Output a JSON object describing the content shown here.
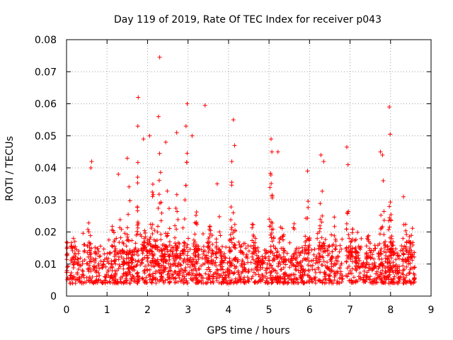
{
  "chart_data": {
    "type": "scatter",
    "title": "Day 119 of 2019, Rate Of TEC Index for receiver p043",
    "xlabel": "GPS time / hours",
    "ylabel": "ROTI / TECUs",
    "xlim": [
      0,
      9
    ],
    "ylim": [
      0,
      0.08
    ],
    "xticks": [
      0,
      1,
      2,
      3,
      4,
      5,
      6,
      7,
      8,
      9
    ],
    "yticks": [
      0,
      0.01,
      0.02,
      0.03,
      0.04,
      0.05,
      0.06,
      0.07,
      0.08
    ],
    "xtick_labels": [
      "0",
      "1",
      "2",
      "3",
      "4",
      "5",
      "6",
      "7",
      "8",
      "9"
    ],
    "ytick_labels": [
      "0",
      "0.01",
      "0.02",
      "0.03",
      "0.04",
      "0.05",
      "0.06",
      "0.07",
      "0.08"
    ],
    "grid": true,
    "marker": "+",
    "series_color": "#ff0000",
    "data_range_hours": [
      0.0,
      8.6
    ],
    "baseline_roti_range": [
      0.004,
      0.016
    ],
    "notable_points": [
      {
        "x": 0.62,
        "y": 0.042
      },
      {
        "x": 0.6,
        "y": 0.04
      },
      {
        "x": 1.28,
        "y": 0.038
      },
      {
        "x": 1.5,
        "y": 0.043
      },
      {
        "x": 1.77,
        "y": 0.062
      },
      {
        "x": 1.76,
        "y": 0.053
      },
      {
        "x": 1.9,
        "y": 0.049
      },
      {
        "x": 2.05,
        "y": 0.05
      },
      {
        "x": 2.27,
        "y": 0.056
      },
      {
        "x": 2.3,
        "y": 0.0745
      },
      {
        "x": 2.45,
        "y": 0.048
      },
      {
        "x": 2.72,
        "y": 0.051
      },
      {
        "x": 2.98,
        "y": 0.06
      },
      {
        "x": 2.95,
        "y": 0.053
      },
      {
        "x": 3.1,
        "y": 0.05
      },
      {
        "x": 3.42,
        "y": 0.0595
      },
      {
        "x": 3.72,
        "y": 0.035
      },
      {
        "x": 4.12,
        "y": 0.055
      },
      {
        "x": 4.15,
        "y": 0.047
      },
      {
        "x": 4.08,
        "y": 0.042
      },
      {
        "x": 5.05,
        "y": 0.049
      },
      {
        "x": 5.07,
        "y": 0.045
      },
      {
        "x": 5.22,
        "y": 0.045
      },
      {
        "x": 5.95,
        "y": 0.039
      },
      {
        "x": 6.28,
        "y": 0.044
      },
      {
        "x": 6.35,
        "y": 0.042
      },
      {
        "x": 6.92,
        "y": 0.0465
      },
      {
        "x": 6.95,
        "y": 0.041
      },
      {
        "x": 7.75,
        "y": 0.045
      },
      {
        "x": 7.8,
        "y": 0.044
      },
      {
        "x": 7.82,
        "y": 0.036
      },
      {
        "x": 7.97,
        "y": 0.059
      },
      {
        "x": 7.99,
        "y": 0.0505
      },
      {
        "x": 8.32,
        "y": 0.031
      }
    ],
    "activity_bursts": [
      {
        "x": 0.25,
        "amp": 0.013
      },
      {
        "x": 0.55,
        "amp": 0.014
      },
      {
        "x": 1.15,
        "amp": 0.015
      },
      {
        "x": 1.35,
        "amp": 0.018
      },
      {
        "x": 1.55,
        "amp": 0.025
      },
      {
        "x": 1.78,
        "amp": 0.035
      },
      {
        "x": 1.95,
        "amp": 0.026
      },
      {
        "x": 2.12,
        "amp": 0.028
      },
      {
        "x": 2.3,
        "amp": 0.035
      },
      {
        "x": 2.5,
        "amp": 0.024
      },
      {
        "x": 2.72,
        "amp": 0.03
      },
      {
        "x": 2.97,
        "amp": 0.036
      },
      {
        "x": 3.2,
        "amp": 0.018
      },
      {
        "x": 3.55,
        "amp": 0.016
      },
      {
        "x": 3.75,
        "amp": 0.02
      },
      {
        "x": 4.1,
        "amp": 0.03
      },
      {
        "x": 4.6,
        "amp": 0.014
      },
      {
        "x": 5.05,
        "amp": 0.03
      },
      {
        "x": 5.3,
        "amp": 0.016
      },
      {
        "x": 5.6,
        "amp": 0.015
      },
      {
        "x": 5.95,
        "amp": 0.022
      },
      {
        "x": 6.3,
        "amp": 0.028
      },
      {
        "x": 6.6,
        "amp": 0.018
      },
      {
        "x": 6.95,
        "amp": 0.02
      },
      {
        "x": 7.1,
        "amp": 0.016
      },
      {
        "x": 7.45,
        "amp": 0.014
      },
      {
        "x": 7.8,
        "amp": 0.028
      },
      {
        "x": 8.0,
        "amp": 0.024
      },
      {
        "x": 8.35,
        "amp": 0.015
      },
      {
        "x": 8.5,
        "amp": 0.014
      }
    ]
  }
}
